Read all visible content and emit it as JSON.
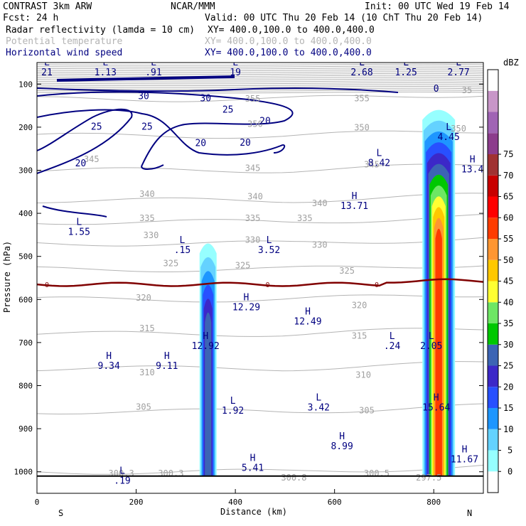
{
  "header": {
    "model": "CONTRAST  3km ARW",
    "org": "NCAR/MMM",
    "init": "Init: 00 UTC Wed 19 Feb 14",
    "fcst": "Fcst:   24 h",
    "valid": "Valid: 00 UTC Thu 20 Feb 14 (10 ChT Thu 20 Feb 14)",
    "fields": [
      {
        "name": "Radar reflectivity (lamda = 10 cm)",
        "xy": "XY= 400.0,100.0 to 400.0,400.0",
        "color": "#000000"
      },
      {
        "name": "Potential temperature",
        "xy": "XY= 400.0,100.0 to 400.0,400.0",
        "color": "#b4b4b4"
      },
      {
        "name": "Horizontal wind speed",
        "xy": "XY= 400.0,100.0 to 400.0,400.0",
        "color": "#000080"
      }
    ]
  },
  "chart_data": {
    "type": "cross-section",
    "xlabel": "Distance (km)",
    "ylabel": "Pressure (hPa)",
    "xlim": [
      0,
      900
    ],
    "ylim": [
      1050,
      50
    ],
    "x_ticks": [
      0,
      200,
      400,
      600,
      800
    ],
    "y_ticks": [
      100,
      200,
      300,
      400,
      500,
      600,
      700,
      800,
      900,
      1000
    ],
    "x_end_labels": {
      "left": "S",
      "right": "N"
    },
    "colorbar": {
      "unit": "dBZ",
      "levels": [
        0,
        5,
        10,
        15,
        20,
        25,
        30,
        35,
        40,
        45,
        50,
        55,
        60,
        65,
        70,
        75
      ],
      "colors": [
        "#ffffff",
        "#96ffff",
        "#64d2ff",
        "#1e96ff",
        "#2850ff",
        "#3c28c8",
        "#3c64b4",
        "#00c800",
        "#6ee664",
        "#ffff32",
        "#ffc800",
        "#ff9632",
        "#ff3c00",
        "#ff0000",
        "#c80000",
        "#a03232",
        "#8c3c8c",
        "#a064b4",
        "#c896c8",
        "#ffffff"
      ]
    },
    "theta_contours": [
      {
        "value": 300,
        "p": 1000
      },
      {
        "value": 305,
        "p": 860
      },
      {
        "value": 310,
        "p": 760
      },
      {
        "value": 315,
        "p": 680
      },
      {
        "value": 320,
        "p": 600
      },
      {
        "value": 325,
        "p": 530
      },
      {
        "value": 330,
        "p": 470
      },
      {
        "value": 335,
        "p": 420
      },
      {
        "value": 340,
        "p": 370
      },
      {
        "value": 345,
        "p": 300
      },
      {
        "value": 350,
        "p": 220
      },
      {
        "value": 355,
        "p": 135
      }
    ],
    "theta_labels": [
      {
        "text": "300.3",
        "x": 170,
        "p": 1010
      },
      {
        "text": "300.3",
        "x": 270,
        "p": 1010
      },
      {
        "text": "300.8",
        "x": 518,
        "p": 1020
      },
      {
        "text": "300.5",
        "x": 685,
        "p": 1010
      },
      {
        "text": "297.5",
        "x": 790,
        "p": 1020
      },
      {
        "text": "305",
        "x": 215,
        "p": 856
      },
      {
        "text": "305",
        "x": 665,
        "p": 864
      },
      {
        "text": "310",
        "x": 222,
        "p": 776
      },
      {
        "text": "310",
        "x": 658,
        "p": 782
      },
      {
        "text": "315",
        "x": 222,
        "p": 674
      },
      {
        "text": "315",
        "x": 650,
        "p": 691
      },
      {
        "text": "320",
        "x": 215,
        "p": 603
      },
      {
        "text": "320",
        "x": 650,
        "p": 620
      },
      {
        "text": "325",
        "x": 270,
        "p": 523
      },
      {
        "text": "325",
        "x": 415,
        "p": 528
      },
      {
        "text": "325",
        "x": 625,
        "p": 540
      },
      {
        "text": "330",
        "x": 230,
        "p": 458
      },
      {
        "text": "330",
        "x": 435,
        "p": 468
      },
      {
        "text": "330",
        "x": 570,
        "p": 480
      },
      {
        "text": "335",
        "x": 222,
        "p": 418
      },
      {
        "text": "335",
        "x": 435,
        "p": 418
      },
      {
        "text": "335",
        "x": 540,
        "p": 418
      },
      {
        "text": "340",
        "x": 222,
        "p": 362
      },
      {
        "text": "340",
        "x": 440,
        "p": 368
      },
      {
        "text": "340",
        "x": 570,
        "p": 383
      },
      {
        "text": "345",
        "x": 110,
        "p": 281
      },
      {
        "text": "345",
        "x": 435,
        "p": 302
      },
      {
        "text": "345",
        "x": 675,
        "p": 293
      },
      {
        "text": "350",
        "x": 440,
        "p": 199
      },
      {
        "text": "350",
        "x": 655,
        "p": 208
      },
      {
        "text": "350",
        "x": 850,
        "p": 210
      },
      {
        "text": "355",
        "x": 435,
        "p": 141
      },
      {
        "text": "355",
        "x": 655,
        "p": 140
      },
      {
        "text": "35",
        "x": 867,
        "p": 121
      }
    ],
    "freezing_level": {
      "value": 0,
      "p": 565,
      "label": "0",
      "color": "#800000"
    },
    "wind_labels": [
      {
        "text": "30",
        "x": 340,
        "p": 140
      },
      {
        "text": "25",
        "x": 385,
        "p": 166
      },
      {
        "text": "25",
        "x": 120,
        "p": 206
      },
      {
        "text": "25",
        "x": 222,
        "p": 206
      },
      {
        "text": "20",
        "x": 460,
        "p": 193
      },
      {
        "text": "20",
        "x": 330,
        "p": 244
      },
      {
        "text": "20",
        "x": 420,
        "p": 243
      },
      {
        "text": "20",
        "x": 88,
        "p": 291
      },
      {
        "text": "0",
        "x": 805,
        "p": 118
      },
      {
        "text": "30",
        "x": 215,
        "p": 135
      }
    ],
    "extrema": [
      {
        "type": "L",
        "value": "21",
        "x": 20,
        "p": 75
      },
      {
        "type": "L",
        "value": "1.13",
        "x": 138,
        "p": 75
      },
      {
        "type": "L",
        "value": ".91",
        "x": 235,
        "p": 75
      },
      {
        "type": "L",
        "value": "19",
        "x": 400,
        "p": 75
      },
      {
        "type": "L",
        "value": "2.68",
        "x": 655,
        "p": 75
      },
      {
        "type": "L",
        "value": "1.25",
        "x": 744,
        "p": 75
      },
      {
        "type": "L",
        "value": "2.77",
        "x": 850,
        "p": 75
      },
      {
        "type": "L",
        "value": "4.45",
        "x": 830,
        "p": 225
      },
      {
        "type": "L",
        "value": "8.42",
        "x": 690,
        "p": 285
      },
      {
        "type": "H",
        "value": "13.4",
        "x": 878,
        "p": 300
      },
      {
        "type": "H",
        "value": "13.71",
        "x": 640,
        "p": 385
      },
      {
        "type": "L",
        "value": "1.55",
        "x": 85,
        "p": 445
      },
      {
        "type": "L",
        "value": ".15",
        "x": 293,
        "p": 487
      },
      {
        "type": "L",
        "value": "3.52",
        "x": 468,
        "p": 487
      },
      {
        "type": "H",
        "value": "12.29",
        "x": 422,
        "p": 620
      },
      {
        "type": "H",
        "value": "12.49",
        "x": 546,
        "p": 653
      },
      {
        "type": "H",
        "value": "12.92",
        "x": 340,
        "p": 710
      },
      {
        "type": "L",
        "value": ".24",
        "x": 716,
        "p": 710
      },
      {
        "type": "L",
        "value": "2.05",
        "x": 795,
        "p": 710
      },
      {
        "type": "H",
        "value": "9.34",
        "x": 145,
        "p": 756
      },
      {
        "type": "H",
        "value": "9.11",
        "x": 262,
        "p": 756
      },
      {
        "type": "L",
        "value": "1.92",
        "x": 395,
        "p": 860
      },
      {
        "type": "L",
        "value": "3.42",
        "x": 568,
        "p": 853
      },
      {
        "type": "H",
        "value": "15.64",
        "x": 805,
        "p": 853
      },
      {
        "type": "H",
        "value": "8.99",
        "x": 615,
        "p": 943
      },
      {
        "type": "H",
        "value": "11.67",
        "x": 862,
        "p": 973
      },
      {
        "type": "H",
        "value": "5.41",
        "x": 435,
        "p": 993
      },
      {
        "type": "L",
        "value": ".19",
        "x": 172,
        "p": 1023
      }
    ],
    "convective_cells": [
      {
        "x_center": 345,
        "top_p": 460,
        "max_dbz": 30
      },
      {
        "x_center": 810,
        "top_p": 150,
        "max_dbz": 60
      }
    ]
  }
}
